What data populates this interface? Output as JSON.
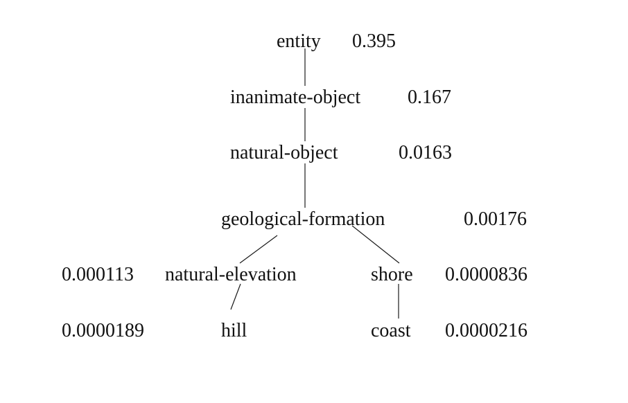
{
  "tree": {
    "nodes": [
      {
        "id": "entity",
        "label": "entity",
        "value": "0.395"
      },
      {
        "id": "inanimate_object",
        "label": "inanimate-object",
        "value": "0.167"
      },
      {
        "id": "natural_object",
        "label": "natural-object",
        "value": "0.0163"
      },
      {
        "id": "geological_formation",
        "label": "geological-formation",
        "value": "0.00176"
      },
      {
        "id": "natural_elevation",
        "label": "natural-elevation",
        "value": "0.000113"
      },
      {
        "id": "shore",
        "label": "shore",
        "value": "0.0000836"
      },
      {
        "id": "hill",
        "label": "hill",
        "value": "0.0000189"
      },
      {
        "id": "coast",
        "label": "coast",
        "value": "0.0000216"
      }
    ],
    "edges": [
      [
        "entity",
        "inanimate_object"
      ],
      [
        "inanimate_object",
        "natural_object"
      ],
      [
        "natural_object",
        "geological_formation"
      ],
      [
        "geological_formation",
        "natural_elevation"
      ],
      [
        "geological_formation",
        "shore"
      ],
      [
        "natural_elevation",
        "hill"
      ],
      [
        "shore",
        "coast"
      ]
    ]
  }
}
